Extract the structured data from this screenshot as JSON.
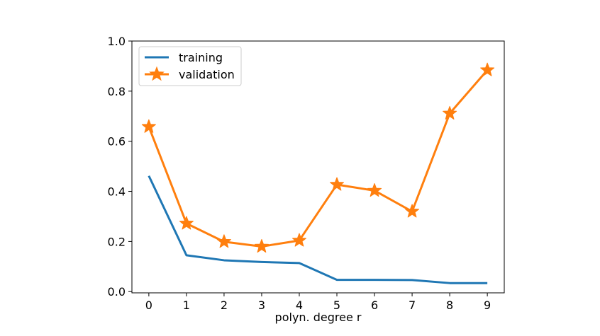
{
  "chart_data": {
    "type": "line",
    "title": "",
    "xlabel": "polyn. degree r",
    "ylabel": "",
    "x": [
      0,
      1,
      2,
      3,
      4,
      5,
      6,
      7,
      8,
      9
    ],
    "xticks": [
      "0",
      "1",
      "2",
      "3",
      "4",
      "5",
      "6",
      "7",
      "8",
      "9"
    ],
    "xlim": [
      -0.45,
      9.45
    ],
    "ylim": [
      -0.005,
      1.0
    ],
    "yticks": [
      "0.0",
      "0.2",
      "0.4",
      "0.6",
      "0.8",
      "1.0"
    ],
    "grid": false,
    "legend_position": "top-left",
    "series": [
      {
        "name": "training",
        "color": "#1f77b4",
        "marker": "none",
        "values": [
          0.462,
          0.145,
          0.125,
          0.118,
          0.114,
          0.047,
          0.047,
          0.046,
          0.034,
          0.034
        ]
      },
      {
        "name": "validation",
        "color": "#ff7f0e",
        "marker": "star",
        "values": [
          0.658,
          0.272,
          0.199,
          0.18,
          0.204,
          0.427,
          0.403,
          0.32,
          0.711,
          0.884
        ]
      }
    ]
  }
}
